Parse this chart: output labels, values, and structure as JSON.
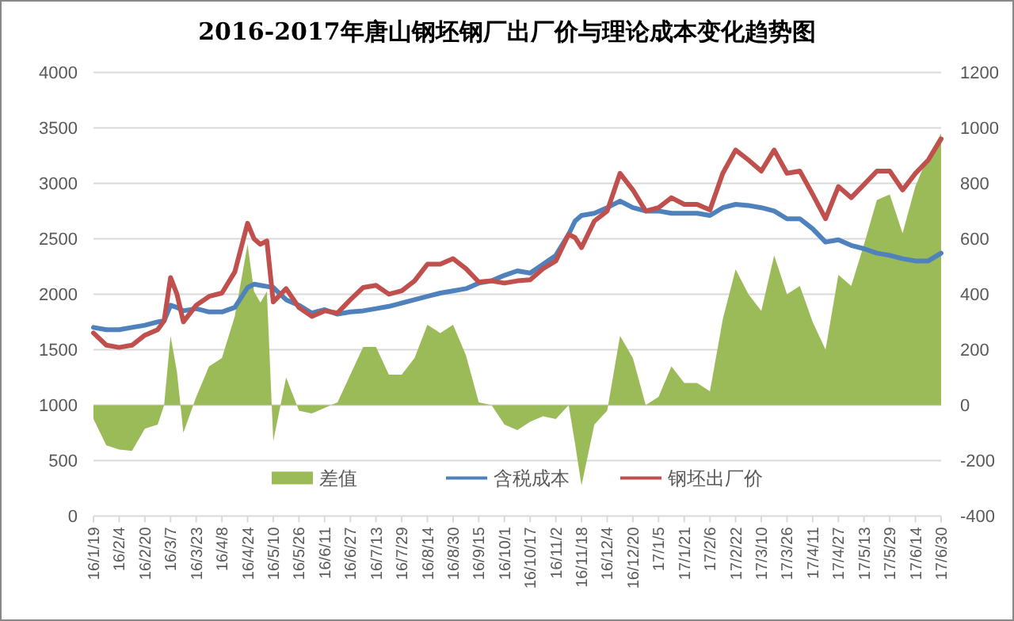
{
  "chart_data": {
    "type": "line",
    "title": "2016-2017年唐山钢坯钢厂出厂价与理论成本变化趋势图",
    "x": [
      "2016-01-19",
      "2016-01-27",
      "2016-02-04",
      "2016-02-12",
      "2016-02-20",
      "2016-02-28",
      "2016-03-03",
      "2016-03-07",
      "2016-03-11",
      "2016-03-15",
      "2016-03-23",
      "2016-03-31",
      "2016-04-08",
      "2016-04-16",
      "2016-04-24",
      "2016-04-28",
      "2016-05-02",
      "2016-05-06",
      "2016-05-10",
      "2016-05-18",
      "2016-05-26",
      "2016-06-03",
      "2016-06-11",
      "2016-06-19",
      "2016-06-27",
      "2016-07-05",
      "2016-07-13",
      "2016-07-21",
      "2016-07-29",
      "2016-08-06",
      "2016-08-14",
      "2016-08-22",
      "2016-08-30",
      "2016-09-07",
      "2016-09-15",
      "2016-09-23",
      "2016-10-01",
      "2016-10-09",
      "2016-10-17",
      "2016-10-25",
      "2016-11-02",
      "2016-11-10",
      "2016-11-14",
      "2016-11-18",
      "2016-11-26",
      "2016-12-04",
      "2016-12-12",
      "2016-12-20",
      "2016-12-28",
      "2017-01-05",
      "2017-01-13",
      "2017-01-21",
      "2017-01-29",
      "2017-02-06",
      "2017-02-14",
      "2017-02-22",
      "2017-03-02",
      "2017-03-10",
      "2017-03-18",
      "2017-03-26",
      "2017-04-03",
      "2017-04-11",
      "2017-04-19",
      "2017-04-27",
      "2017-05-05",
      "2017-05-13",
      "2017-05-21",
      "2017-05-29",
      "2017-06-06",
      "2017-06-14",
      "2017-06-22",
      "2017-06-30"
    ],
    "series": [
      {
        "name": "差值",
        "type": "area",
        "axis": "y2",
        "color": "#9bbb59",
        "values": [
          -50,
          -145,
          -160,
          -165,
          -85,
          -70,
          0,
          250,
          120,
          -100,
          30,
          140,
          170,
          320,
          580,
          410,
          370,
          410,
          -130,
          100,
          -20,
          -30,
          -10,
          10,
          110,
          210,
          210,
          110,
          110,
          170,
          290,
          260,
          290,
          180,
          10,
          0,
          -70,
          -90,
          -60,
          -40,
          -50,
          0,
          -140,
          -290,
          -70,
          -20,
          250,
          170,
          0,
          30,
          140,
          80,
          80,
          50,
          310,
          490,
          400,
          340,
          540,
          400,
          430,
          300,
          200,
          470,
          430,
          580,
          740,
          760,
          620,
          790,
          900,
          980
        ]
      },
      {
        "name": "含税成本",
        "color": "#4f81bd",
        "values": [
          1700,
          1680,
          1680,
          1700,
          1720,
          1750,
          1760,
          1900,
          1880,
          1850,
          1870,
          1840,
          1840,
          1880,
          2060,
          2090,
          2080,
          2070,
          2060,
          1950,
          1900,
          1830,
          1860,
          1820,
          1840,
          1850,
          1870,
          1890,
          1920,
          1950,
          1980,
          2010,
          2030,
          2050,
          2100,
          2120,
          2170,
          2210,
          2190,
          2270,
          2350,
          2540,
          2660,
          2710,
          2730,
          2780,
          2840,
          2780,
          2750,
          2750,
          2730,
          2730,
          2730,
          2710,
          2780,
          2810,
          2800,
          2780,
          2750,
          2680,
          2680,
          2590,
          2470,
          2490,
          2440,
          2410,
          2370,
          2350,
          2320,
          2300,
          2300,
          2370
        ]
      },
      {
        "name": "钢坯出厂价",
        "color": "#c0504d",
        "values": [
          1650,
          1540,
          1520,
          1540,
          1630,
          1680,
          1760,
          2150,
          2000,
          1750,
          1900,
          1980,
          2010,
          2200,
          2640,
          2500,
          2450,
          2480,
          1930,
          2050,
          1880,
          1800,
          1850,
          1830,
          1950,
          2060,
          2080,
          2000,
          2030,
          2120,
          2270,
          2270,
          2320,
          2230,
          2110,
          2120,
          2100,
          2120,
          2130,
          2230,
          2300,
          2540,
          2510,
          2420,
          2660,
          2750,
          3090,
          2940,
          2750,
          2780,
          2870,
          2810,
          2810,
          2760,
          3090,
          3300,
          3210,
          3110,
          3300,
          3090,
          3110,
          2900,
          2680,
          2970,
          2870,
          2990,
          3110,
          3110,
          2940,
          3090,
          3210,
          3400
        ]
      }
    ],
    "xlim": [
      "2016-01-19",
      "2017-06-30"
    ],
    "xticks": [
      {
        "value": "2016-01-19",
        "label": "16/1/19"
      },
      {
        "value": "2016-02-04",
        "label": "16/2/4"
      },
      {
        "value": "2016-02-20",
        "label": "16/2/20"
      },
      {
        "value": "2016-03-07",
        "label": "16/3/7"
      },
      {
        "value": "2016-03-23",
        "label": "16/3/23"
      },
      {
        "value": "2016-04-08",
        "label": "16/4/8"
      },
      {
        "value": "2016-04-24",
        "label": "16/4/24"
      },
      {
        "value": "2016-05-10",
        "label": "16/5/10"
      },
      {
        "value": "2016-05-26",
        "label": "16/5/26"
      },
      {
        "value": "2016-06-11",
        "label": "16/6/11"
      },
      {
        "value": "2016-06-27",
        "label": "16/6/27"
      },
      {
        "value": "2016-07-13",
        "label": "16/7/13"
      },
      {
        "value": "2016-07-29",
        "label": "16/7/29"
      },
      {
        "value": "2016-08-14",
        "label": "16/8/14"
      },
      {
        "value": "2016-08-30",
        "label": "16/8/30"
      },
      {
        "value": "2016-09-15",
        "label": "16/9/15"
      },
      {
        "value": "2016-10-01",
        "label": "16/10/1"
      },
      {
        "value": "2016-10-17",
        "label": "16/10/17"
      },
      {
        "value": "2016-11-02",
        "label": "16/11/2"
      },
      {
        "value": "2016-11-18",
        "label": "16/11/18"
      },
      {
        "value": "2016-12-04",
        "label": "16/12/4"
      },
      {
        "value": "2016-12-20",
        "label": "16/12/20"
      },
      {
        "value": "2017-01-05",
        "label": "17/1/5"
      },
      {
        "value": "2017-01-21",
        "label": "17/1/21"
      },
      {
        "value": "2017-02-06",
        "label": "17/2/6"
      },
      {
        "value": "2017-02-22",
        "label": "17/2/22"
      },
      {
        "value": "2017-03-10",
        "label": "17/3/10"
      },
      {
        "value": "2017-03-26",
        "label": "17/3/26"
      },
      {
        "value": "2017-04-11",
        "label": "17/4/11"
      },
      {
        "value": "2017-04-27",
        "label": "17/4/27"
      },
      {
        "value": "2017-05-13",
        "label": "17/5/13"
      },
      {
        "value": "2017-05-29",
        "label": "17/5/29"
      },
      {
        "value": "2017-06-14",
        "label": "17/6/14"
      },
      {
        "value": "2017-06-30",
        "label": "17/6/30"
      }
    ],
    "ylim": [
      0,
      4000
    ],
    "yticks": [
      0,
      500,
      1000,
      1500,
      2000,
      2500,
      3000,
      3500,
      4000
    ],
    "y2lim": [
      -400,
      1200
    ],
    "y2ticks": [
      -400,
      -200,
      0,
      200,
      400,
      600,
      800,
      1000,
      1200
    ],
    "grid": "y",
    "legend": "bottom"
  }
}
